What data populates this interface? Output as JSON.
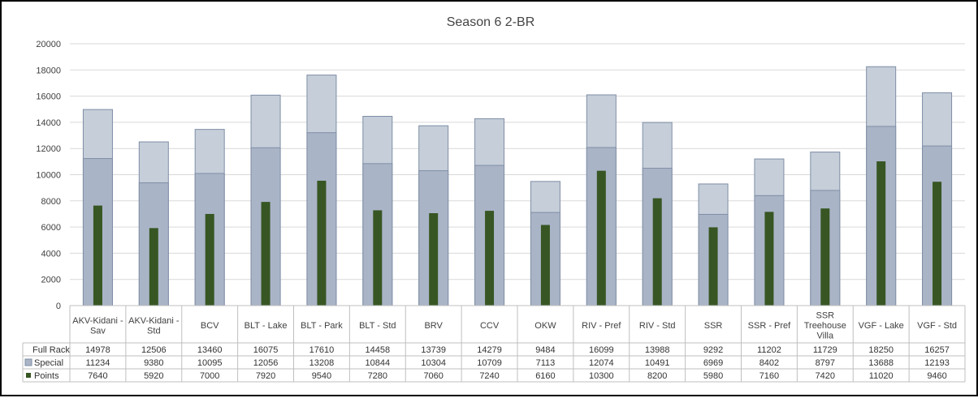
{
  "chart_data": {
    "type": "bar",
    "title": "Season 6 2-BR",
    "categories": [
      [
        "AKV-Kidani -",
        "Sav"
      ],
      [
        "AKV-Kidani -",
        "Std"
      ],
      [
        "BCV"
      ],
      [
        "BLT - Lake"
      ],
      [
        "BLT - Park"
      ],
      [
        "BLT - Std"
      ],
      [
        "BRV"
      ],
      [
        "CCV"
      ],
      [
        "OKW"
      ],
      [
        "RIV - Pref"
      ],
      [
        "RIV - Std"
      ],
      [
        "SSR"
      ],
      [
        "SSR - Pref"
      ],
      [
        "SSR",
        "Treehouse",
        "Villa"
      ],
      [
        "VGF - Lake"
      ],
      [
        "VGF - Std"
      ]
    ],
    "series": [
      {
        "name": "Full Rack",
        "color": "#c5ced9",
        "values": [
          14978,
          12506,
          13460,
          16075,
          17610,
          14458,
          13739,
          14279,
          9484,
          16099,
          13988,
          9292,
          11202,
          11729,
          18250,
          16257
        ]
      },
      {
        "name": "Special",
        "color": "#aab4c7",
        "values": [
          11234,
          9380,
          10095,
          12056,
          13208,
          10844,
          10304,
          10709,
          7113,
          12074,
          10491,
          6969,
          8402,
          8797,
          13688,
          12193
        ]
      },
      {
        "name": "Points",
        "color": "#375623",
        "values": [
          7640,
          5920,
          7000,
          7920,
          9540,
          7280,
          7060,
          7240,
          6160,
          10300,
          8200,
          5980,
          7160,
          7420,
          11020,
          9460
        ]
      }
    ],
    "ylim": [
      0,
      20000
    ],
    "yticks": [
      0,
      2000,
      4000,
      6000,
      8000,
      10000,
      12000,
      14000,
      16000,
      18000,
      20000
    ],
    "grid": true,
    "legend": "data-table"
  }
}
